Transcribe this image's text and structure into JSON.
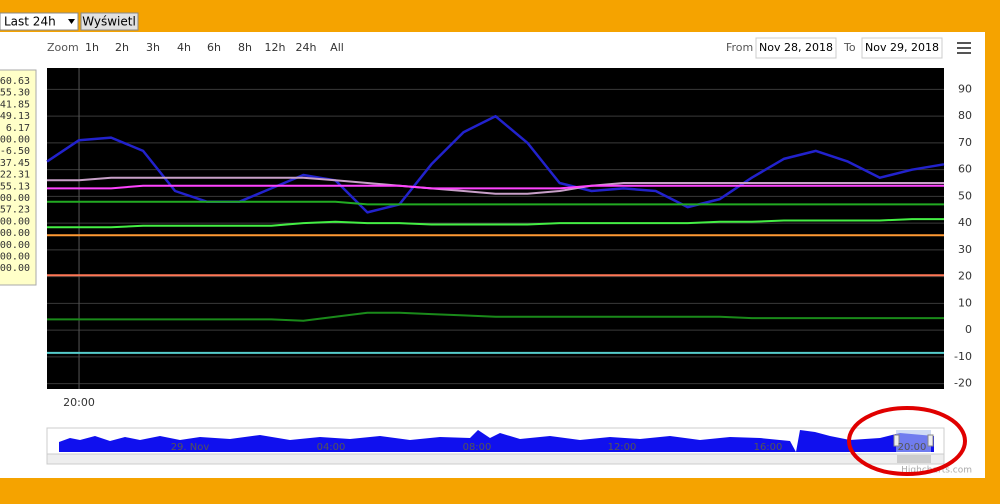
{
  "controls": {
    "select": "Last 24h",
    "button": "Wyświetl",
    "zoom_label": "Zoom",
    "zoom_buttons": [
      "1h",
      "2h",
      "3h",
      "4h",
      "6h",
      "8h",
      "12h",
      "24h",
      "All"
    ],
    "from_label": "From",
    "from": "Nov 28, 2018",
    "to_label": "To",
    "to": "Nov 29, 2018"
  },
  "tooltip_values": [
    "60.63",
    "55.30",
    "41.85",
    "49.13",
    "6.17",
    "00.00",
    "-6.50",
    "37.45",
    "22.31",
    "55.13",
    "00.00",
    "57.23",
    "00.00",
    "00.00",
    "00.00",
    "00.00",
    "00.00"
  ],
  "chart_data": {
    "type": "line",
    "categories": [
      null,
      "20:00",
      null,
      null,
      null,
      null,
      null,
      null,
      null,
      null,
      null,
      null,
      null,
      null,
      null,
      null,
      null,
      null,
      null,
      null,
      null,
      null,
      null,
      null,
      null,
      null,
      null,
      null,
      null
    ],
    "ylim": [
      -22,
      98
    ],
    "yticks": [
      -20,
      -10,
      0,
      10,
      20,
      30,
      40,
      50,
      60,
      70,
      80,
      90
    ],
    "grid": true,
    "series": [
      {
        "color": "#2222cc",
        "values": [
          63,
          71,
          72,
          67,
          52,
          48,
          48,
          53,
          58,
          56,
          44,
          47,
          62,
          74,
          80,
          70,
          55,
          52,
          53,
          52,
          46,
          49,
          57,
          64,
          67,
          63,
          57,
          60,
          62
        ]
      },
      {
        "color": "#c8a0c8",
        "values": [
          56,
          56,
          57,
          57,
          57,
          57,
          57,
          57,
          57,
          56,
          55,
          54,
          53,
          52,
          51,
          51,
          52,
          54,
          55,
          55,
          55,
          55,
          55,
          55,
          55,
          55,
          55,
          55,
          55
        ]
      },
      {
        "color": "#ff44ff",
        "values": [
          53,
          53,
          53,
          54,
          54,
          54,
          54,
          54,
          54,
          54,
          54,
          54,
          53,
          53,
          53,
          53,
          53,
          54,
          54,
          54,
          54,
          54,
          54,
          54,
          54,
          54,
          54,
          54,
          54
        ]
      },
      {
        "color": "#22aa22",
        "values": [
          48,
          48,
          48,
          48,
          48,
          48,
          48,
          48,
          48,
          48,
          47,
          47,
          47,
          47,
          47,
          47,
          47,
          47,
          47,
          47,
          47,
          47,
          47,
          47,
          47,
          47,
          47,
          47,
          47
        ]
      },
      {
        "color": "#44ee44",
        "values": [
          38.5,
          38.5,
          38.5,
          39,
          39,
          39,
          39,
          39,
          40,
          40.5,
          40,
          40,
          39.5,
          39.5,
          39.5,
          39.5,
          40,
          40,
          40,
          40,
          40,
          40.5,
          40.5,
          41,
          41,
          41,
          41,
          41.5,
          41.5
        ]
      },
      {
        "color": "#ff9933",
        "values": [
          35.5,
          35.5,
          35.5,
          35.5,
          35.5,
          35.5,
          35.5,
          35.5,
          35.5,
          35.5,
          35.5,
          35.5,
          35.5,
          35.5,
          35.5,
          35.5,
          35.5,
          35.5,
          35.5,
          35.5,
          35.5,
          35.5,
          35.5,
          35.5,
          35.5,
          35.5,
          35.5,
          35.5,
          35.5
        ]
      },
      {
        "color": "#ff7755",
        "values": [
          20.5,
          20.5,
          20.5,
          20.5,
          20.5,
          20.5,
          20.5,
          20.5,
          20.5,
          20.5,
          20.5,
          20.5,
          20.5,
          20.5,
          20.5,
          20.5,
          20.5,
          20.5,
          20.5,
          20.5,
          20.5,
          20.5,
          20.5,
          20.5,
          20.5,
          20.5,
          20.5,
          20.5,
          20.5
        ]
      },
      {
        "color": "#1a8a1a",
        "values": [
          4,
          4,
          4,
          4,
          4,
          4,
          4,
          4,
          3.5,
          5,
          6.5,
          6.5,
          6,
          5.5,
          5,
          5,
          5,
          5,
          5,
          5,
          5,
          5,
          4.5,
          4.5,
          4.5,
          4.5,
          4.5,
          4.5,
          4.5
        ]
      },
      {
        "color": "#55cccc",
        "values": [
          -8.5,
          -8.5,
          -8.5,
          -8.5,
          -8.5,
          -8.5,
          -8.5,
          -8.5,
          -8.5,
          -8.5,
          -8.5,
          -8.5,
          -8.5,
          -8.5,
          -8.5,
          -8.5,
          -8.5,
          -8.5,
          -8.5,
          -8.5,
          -8.5,
          -8.5,
          -8.5,
          -8.5,
          -8.5,
          -8.5,
          -8.5,
          -8.5,
          -8.5
        ]
      }
    ]
  },
  "navigator": {
    "labels": [
      "29. Nov",
      "04:00",
      "08:00",
      "12:00",
      "16:00",
      "20:00"
    ],
    "credit": "Highcharts.com"
  }
}
